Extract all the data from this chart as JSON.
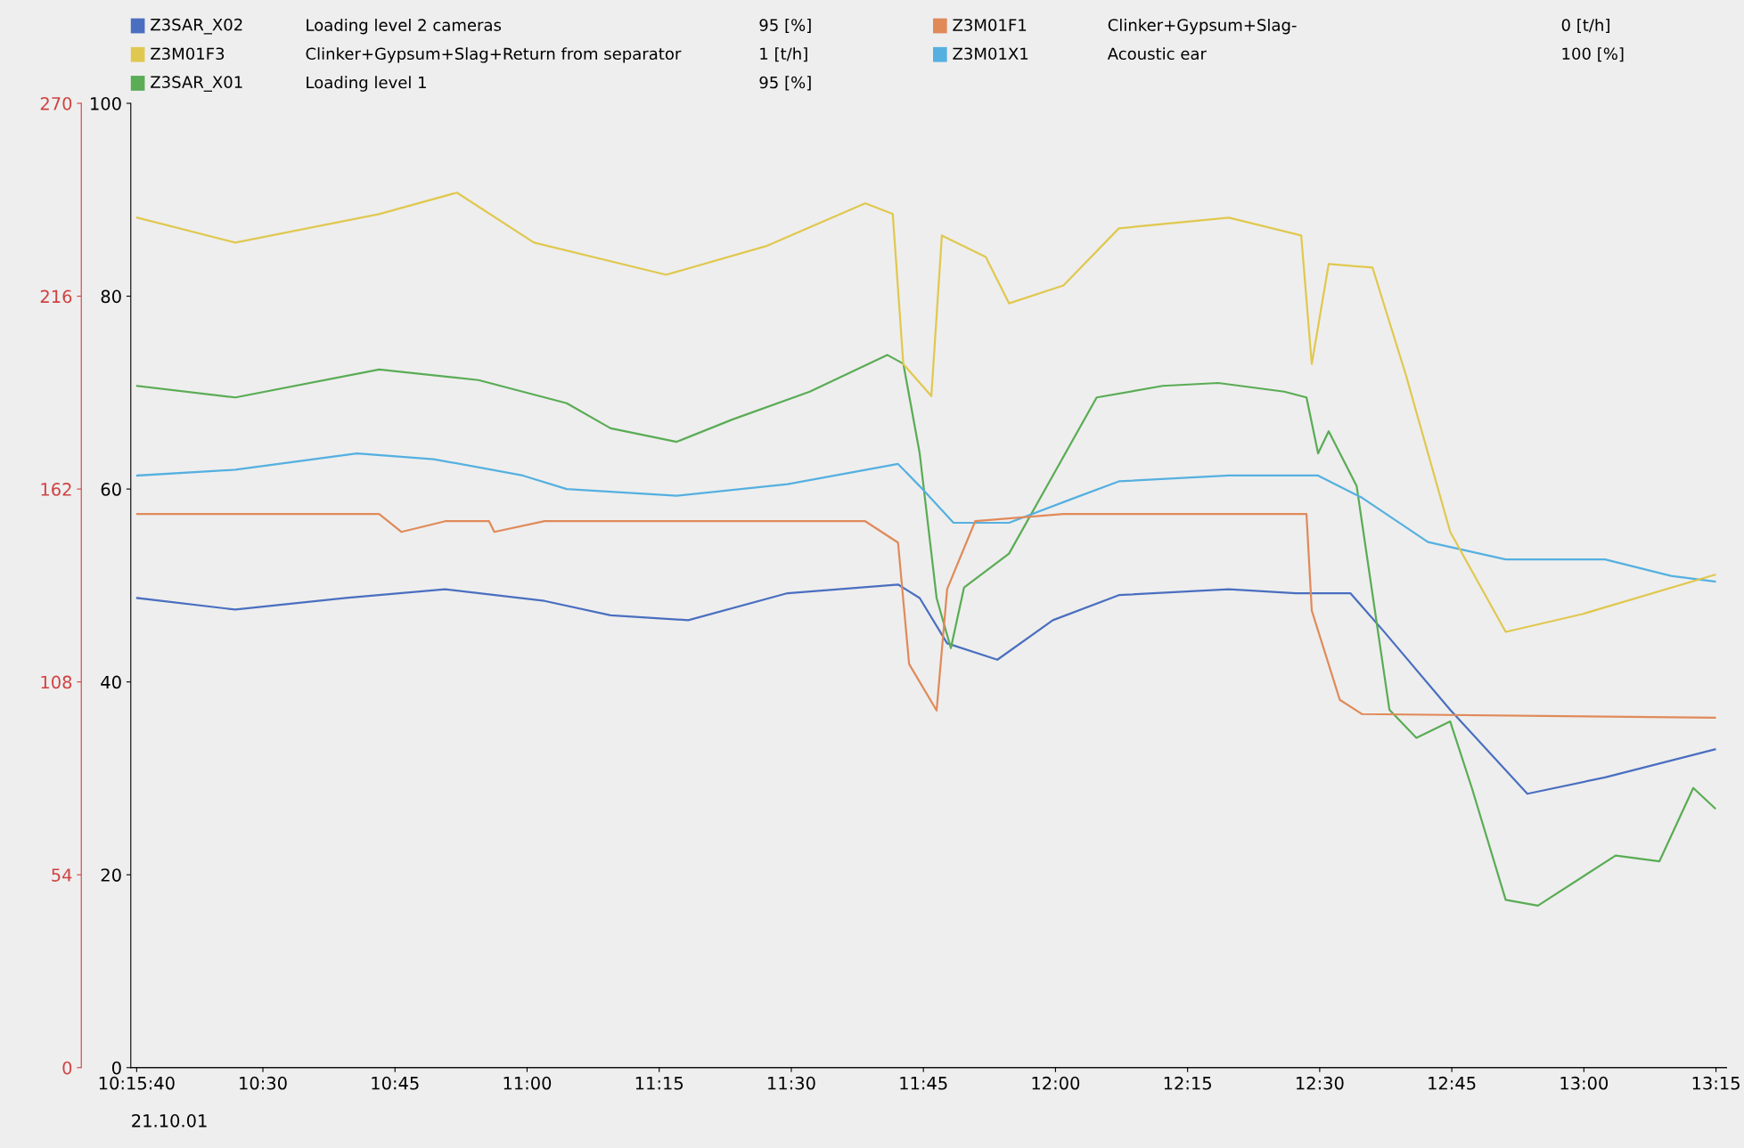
{
  "chart_data": {
    "type": "line",
    "legend": "top",
    "grid": false,
    "line_style": "solid",
    "marker": "none",
    "xlim": [
      10.25,
      13.27
    ],
    "xticks": [
      {
        "value": 10.2611,
        "label": "10:15:40"
      },
      {
        "value": 10.5,
        "label": "10:30"
      },
      {
        "value": 10.75,
        "label": "10:45"
      },
      {
        "value": 11,
        "label": "11:00"
      },
      {
        "value": 11.25,
        "label": "11:15"
      },
      {
        "value": 11.5,
        "label": "11:30"
      },
      {
        "value": 11.75,
        "label": "11:45"
      },
      {
        "value": 12,
        "label": "12:00"
      },
      {
        "value": 12.25,
        "label": "12:15"
      },
      {
        "value": 12.5,
        "label": "12:30"
      },
      {
        "value": 12.75,
        "label": "12:45"
      },
      {
        "value": 13,
        "label": "13:00"
      },
      {
        "value": 13.25,
        "label": "13:15"
      }
    ],
    "ylim": [
      0,
      100
    ],
    "yticks": [
      0,
      20,
      40,
      60,
      80,
      100
    ],
    "y2lim": [
      0,
      270
    ],
    "y2ticks": [
      0,
      54,
      108,
      162,
      216,
      270
    ],
    "annotations": [
      "Loading level 2 cameras",
      "95 [%]",
      "Clinker+Gypsum+Slag+Return from separator",
      "1 [t/h]",
      "Loading level 1",
      "95 [%]",
      "Clinker+Gypsum+Slag-",
      "0 [t/h]",
      "Acoustic ear",
      "100 [%]",
      "21.10.01"
    ],
    "series": [
      {
        "name": "Z3SAR_X02",
        "color": "#4a6fc0",
        "x": [
          10.262,
          10.448,
          10.657,
          10.845,
          11.033,
          11.158,
          11.305,
          11.493,
          11.702,
          11.743,
          11.795,
          11.89,
          11.995,
          12.12,
          12.328,
          12.455,
          12.558,
          12.622,
          12.747,
          12.893,
          13.04,
          13.248
        ],
        "values": [
          48.7,
          47.5,
          48.7,
          49.6,
          48.4,
          46.9,
          46.4,
          49.2,
          50.1,
          48.7,
          44,
          42.3,
          46.4,
          49,
          49.6,
          49.2,
          49.2,
          45.2,
          37.1,
          28.4,
          30.1,
          33
        ]
      },
      {
        "name": "Z3M01F3",
        "color": "#e0c850",
        "axis": "y2",
        "x": [
          10.262,
          10.448,
          10.72,
          10.867,
          11.013,
          11.263,
          11.452,
          11.64,
          11.692,
          11.712,
          11.765,
          11.785,
          11.868,
          11.912,
          12.015,
          12.12,
          12.328,
          12.465,
          12.485,
          12.517,
          12.6,
          12.663,
          12.747,
          12.852,
          12.997,
          13.248
        ],
        "values": [
          238,
          231,
          239,
          245,
          231,
          222,
          230,
          242,
          239,
          197,
          188,
          233,
          227,
          214,
          219,
          235,
          238,
          233,
          197,
          225,
          224,
          194,
          150,
          122,
          127,
          138
        ]
      },
      {
        "name": "Z3SAR_X01",
        "color": "#5aac55",
        "x": [
          10.262,
          10.448,
          10.72,
          10.908,
          11.075,
          11.158,
          11.283,
          11.388,
          11.535,
          11.682,
          11.712,
          11.743,
          11.775,
          11.802,
          11.827,
          11.912,
          11.995,
          12.078,
          12.203,
          12.308,
          12.433,
          12.475,
          12.497,
          12.517,
          12.57,
          12.632,
          12.683,
          12.747,
          12.788,
          12.852,
          12.913,
          13.06,
          13.143,
          13.207,
          13.248
        ],
        "values": [
          70.7,
          69.5,
          72.4,
          71.3,
          68.9,
          66.3,
          64.9,
          67.2,
          70.1,
          73.9,
          73,
          63.7,
          48.7,
          43.5,
          49.8,
          53.3,
          61.4,
          69.5,
          70.7,
          71,
          70.1,
          69.5,
          63.7,
          66,
          60.3,
          37.1,
          34.2,
          35.9,
          29,
          17.4,
          16.8,
          22,
          21.4,
          29,
          26.9
        ]
      },
      {
        "name": "Z3M01F1",
        "color": "#e08a5a",
        "axis": "y2",
        "x": [
          10.262,
          10.72,
          10.762,
          10.845,
          10.928,
          10.938,
          11.033,
          11.64,
          11.702,
          11.723,
          11.775,
          11.795,
          11.848,
          12.015,
          12.475,
          12.485,
          12.538,
          12.58,
          13.248
        ],
        "values": [
          155,
          155,
          150,
          153,
          153,
          150,
          153,
          153,
          147,
          113,
          100,
          134,
          153,
          155,
          155,
          128,
          103,
          99,
          98
        ]
      },
      {
        "name": "Z3M01X1",
        "color": "#55b0e0",
        "x": [
          10.262,
          10.448,
          10.678,
          10.823,
          10.992,
          11.075,
          11.283,
          11.493,
          11.702,
          11.743,
          11.807,
          11.912,
          12.037,
          12.12,
          12.328,
          12.497,
          12.58,
          12.705,
          12.852,
          13.04,
          13.165,
          13.248
        ],
        "values": [
          61.4,
          62,
          63.7,
          63.1,
          61.4,
          60,
          59.3,
          60.5,
          62.6,
          60.3,
          56.5,
          56.5,
          59.1,
          60.8,
          61.4,
          61.4,
          59.1,
          54.5,
          52.7,
          52.7,
          51,
          50.4
        ]
      }
    ]
  }
}
